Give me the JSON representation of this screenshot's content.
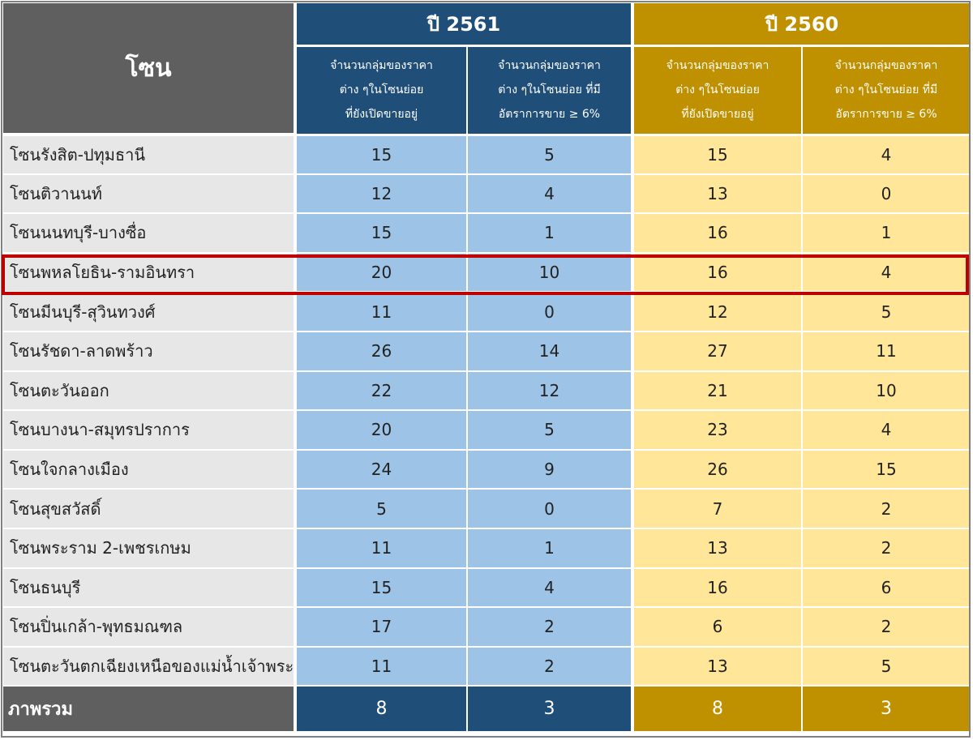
{
  "header": {
    "zone_label": "โซน",
    "year_2561": "ปี 2561",
    "year_2560": "ปี 2560",
    "sub_open_line1": "จำนวนกลุ่มของราคา",
    "sub_open_line2": "ต่าง ๆในโซนย่อย",
    "sub_open_line3": "ที่ยังเปิดขายอยู่",
    "sub_rate_line1": "จำนวนกลุ่มของราคา",
    "sub_rate_line2": "ต่าง ๆในโซนย่อย ที่มี",
    "sub_rate_line3": "อัตราการขาย ≥ 6%"
  },
  "rows": [
    {
      "zone": "โซนรังสิต-ปทุมธานี",
      "y2561_open": "15",
      "y2561_rate": "5",
      "y2560_open": "15",
      "y2560_rate": "4"
    },
    {
      "zone": "โซนติวานนท์",
      "y2561_open": "12",
      "y2561_rate": "4",
      "y2560_open": "13",
      "y2560_rate": "0"
    },
    {
      "zone": "โซนนนทบุรี-บางซื่อ",
      "y2561_open": "15",
      "y2561_rate": "1",
      "y2560_open": "16",
      "y2560_rate": "1"
    },
    {
      "zone": "โซนพหลโยธิน-รามอินทรา",
      "y2561_open": "20",
      "y2561_rate": "10",
      "y2560_open": "16",
      "y2560_rate": "4"
    },
    {
      "zone": "โซนมีนบุรี-สุวินทวงศ์",
      "y2561_open": "11",
      "y2561_rate": "0",
      "y2560_open": "12",
      "y2560_rate": "5"
    },
    {
      "zone": "โซนรัชดา-ลาดพร้าว",
      "y2561_open": "26",
      "y2561_rate": "14",
      "y2560_open": "27",
      "y2560_rate": "11"
    },
    {
      "zone": "โซนตะวันออก",
      "y2561_open": "22",
      "y2561_rate": "12",
      "y2560_open": "21",
      "y2560_rate": "10"
    },
    {
      "zone": "โซนบางนา-สมุทรปราการ",
      "y2561_open": "20",
      "y2561_rate": "5",
      "y2560_open": "23",
      "y2560_rate": "4"
    },
    {
      "zone": "โซนใจกลางเมือง",
      "y2561_open": "24",
      "y2561_rate": "9",
      "y2560_open": "26",
      "y2560_rate": "15"
    },
    {
      "zone": "โซนสุขสวัสดิ์",
      "y2561_open": "5",
      "y2561_rate": "0",
      "y2560_open": "7",
      "y2560_rate": "2"
    },
    {
      "zone": "โซนพระราม 2-เพชรเกษม",
      "y2561_open": "11",
      "y2561_rate": "1",
      "y2560_open": "13",
      "y2560_rate": "2"
    },
    {
      "zone": "โซนธนบุรี",
      "y2561_open": "15",
      "y2561_rate": "4",
      "y2560_open": "16",
      "y2560_rate": "6"
    },
    {
      "zone": "โซนปิ่นเกล้า-พุทธมณฑล",
      "y2561_open": "17",
      "y2561_rate": "2",
      "y2560_open": "6",
      "y2560_rate": "2"
    },
    {
      "zone": "โซนตะวันตกเฉียงเหนือของแม่น้ำเจ้าพระยา",
      "y2561_open": "11",
      "y2561_rate": "2",
      "y2560_open": "13",
      "y2560_rate": "5"
    }
  ],
  "total": {
    "label": "ภาพรวม",
    "y2561_open": "8",
    "y2561_rate": "3",
    "y2560_open": "8",
    "y2560_rate": "3"
  },
  "colors": {
    "blue_dark": "#1f4e79",
    "blue_light": "#9dc3e6",
    "gold_dark": "#bf9000",
    "gold_light": "#ffe699",
    "grey_dark": "#5f5f5f",
    "grey_light": "#e7e7e7",
    "highlight": "#c00000"
  }
}
